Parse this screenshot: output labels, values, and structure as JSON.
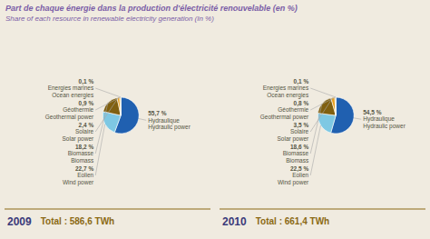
{
  "chart_data": [
    {
      "type": "pie",
      "title": "Part de chaque énergie dans la production d'électricité renouvelable (en %)",
      "subtitle": "Share of each resource in renewable electricity generation (In %)",
      "annotations": [
        "2009",
        "Total : 586,6 TWh"
      ],
      "categories": [
        "Hydraulique\nHydraulic power",
        "Eolien\nWind power",
        "Biomasse\nBiomass",
        "Solaire\nSolar power",
        "Géothermie\nGeothermal power",
        "Energies marines\nOcean energies"
      ],
      "values": [
        55.7,
        22.7,
        18.2,
        2.4,
        0.9,
        0.1
      ],
      "value_labels": [
        "55,7 %",
        "22,7 %",
        "18,2 %",
        "2,4 %",
        "0,9 %",
        "0,1 %"
      ],
      "data_labels": true,
      "colors": [
        "#2060b0",
        "#7ec8e3",
        "#806010",
        "#e8a020",
        "#b8941a",
        "#1a78b0"
      ]
    },
    {
      "type": "pie",
      "annotations": [
        "2010",
        "Total : 661,4 TWh"
      ],
      "categories": [
        "Hydraulique\nHydraulic power",
        "Eolien\nWind power",
        "Biomasse\nBiomass",
        "Solaire\nSolar power",
        "Géothermie\nGeothermal power",
        "Energies marines\nOcean energies"
      ],
      "values": [
        54.5,
        22.5,
        18.6,
        3.5,
        0.8,
        0.1
      ],
      "value_labels": [
        "54,5 %",
        "22,5 %",
        "18,6 %",
        "3,5 %",
        "0,8 %",
        "0,1 %"
      ],
      "data_labels": true,
      "colors": [
        "#2060b0",
        "#7ec8e3",
        "#806010",
        "#e8a020",
        "#b8941a",
        "#1a78b0"
      ]
    }
  ]
}
